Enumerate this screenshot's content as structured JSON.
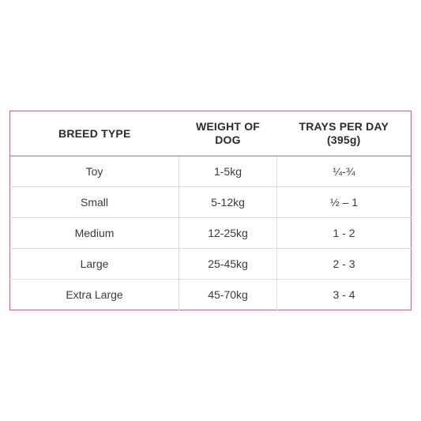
{
  "table": {
    "headers": {
      "breed_type": "BREED TYPE",
      "weight_line1": "WEIGHT OF",
      "weight_line2": "DOG",
      "trays_line1": "TRAYS PER DAY",
      "trays_line2": "(395g)"
    },
    "rows": [
      {
        "breed": "Toy",
        "weight": "1-5kg",
        "trays": "¼-¾"
      },
      {
        "breed": "Small",
        "weight": "5-12kg",
        "trays": "½ – 1"
      },
      {
        "breed": "Medium",
        "weight": "12-25kg",
        "trays": "1 - 2"
      },
      {
        "breed": "Large",
        "weight": "25-45kg",
        "trays": "2 - 3"
      },
      {
        "breed": "Extra Large",
        "weight": "45-70kg",
        "trays": "3 - 4"
      }
    ]
  },
  "colors": {
    "frame_border": "#b86a7c",
    "row_divider": "#dcdcdc",
    "text": "#2b2b2b"
  }
}
